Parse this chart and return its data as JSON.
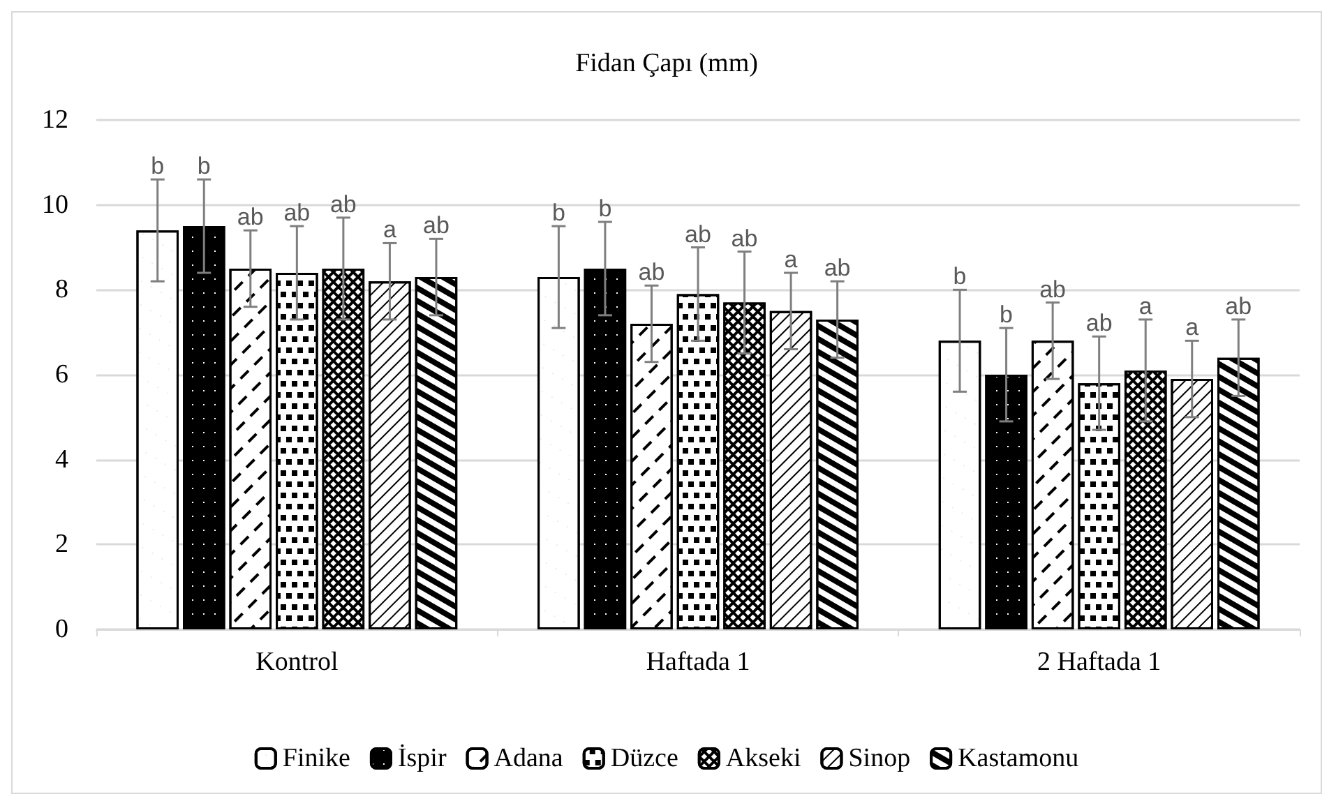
{
  "chart_data": {
    "type": "bar",
    "title": "Fidan Çapı (mm)",
    "categories": [
      "Kontrol",
      "Haftada 1",
      "2 Haftada 1"
    ],
    "series": [
      {
        "name": "Finike",
        "color": "#ffffff",
        "values": [
          9.4,
          8.3,
          6.8
        ],
        "errors": [
          1.2,
          1.2,
          1.2
        ],
        "value_labels": [
          "b",
          "b",
          "b"
        ]
      },
      {
        "name": "İspir",
        "color": "#000000",
        "values": [
          9.5,
          8.5,
          6.0
        ],
        "errors": [
          1.1,
          1.1,
          1.1
        ],
        "value_labels": [
          "b",
          "b",
          "b"
        ]
      },
      {
        "name": "Adana",
        "color": "#ffffff",
        "values": [
          8.5,
          7.2,
          6.8
        ],
        "errors": [
          0.9,
          0.9,
          0.9
        ],
        "value_labels": [
          "ab",
          "ab",
          "ab"
        ]
      },
      {
        "name": "Düzce",
        "color": "#ffffff",
        "values": [
          8.4,
          7.9,
          5.8
        ],
        "errors": [
          1.1,
          1.1,
          1.1
        ],
        "value_labels": [
          "ab",
          "ab",
          "ab"
        ]
      },
      {
        "name": "Akseki",
        "color": "#000000",
        "values": [
          8.5,
          7.7,
          6.1
        ],
        "errors": [
          1.2,
          1.2,
          1.2
        ],
        "value_labels": [
          "ab",
          "ab",
          "a"
        ]
      },
      {
        "name": "Sinop",
        "color": "#ffffff",
        "values": [
          8.2,
          7.5,
          5.9
        ],
        "errors": [
          0.9,
          0.9,
          0.9
        ],
        "value_labels": [
          "a",
          "a",
          "a"
        ]
      },
      {
        "name": "Kastamonu",
        "color": "#ffffff",
        "values": [
          8.3,
          7.3,
          6.4
        ],
        "errors": [
          0.9,
          0.9,
          0.9
        ],
        "value_labels": [
          "ab",
          "ab",
          "ab"
        ]
      }
    ],
    "ylim": [
      0,
      12
    ],
    "yticks": [
      0,
      2,
      4,
      6,
      8,
      10,
      12
    ],
    "grid": "y",
    "legend": "bottom"
  }
}
